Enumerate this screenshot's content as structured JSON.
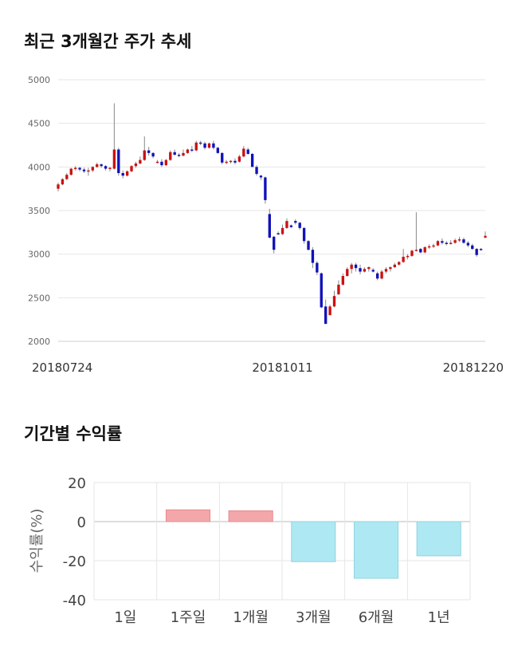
{
  "section1": {
    "title": "최근 3개월간 주가 추세"
  },
  "section2": {
    "title": "기간별 수익률"
  },
  "colors": {
    "up": "#cc1111",
    "down": "#1111bb",
    "positive_bar": "#f4a7ab",
    "negative_bar": "#aee8f2",
    "grid": "#e6e6e6"
  },
  "chart_data": [
    {
      "type": "candlestick",
      "title": "최근 3개월간 주가 추세",
      "ylim": [
        2000,
        5000
      ],
      "y_ticks": [
        5000,
        4500,
        4000,
        3500,
        3000,
        2500,
        2000
      ],
      "x_tick_labels": [
        {
          "index": 0,
          "label": "20180724"
        },
        {
          "index": 52,
          "label": "20181011"
        },
        {
          "index": 99,
          "label": "20181220"
        }
      ],
      "grid": true,
      "ohlc": [
        [
          3750,
          3820,
          3720,
          3800
        ],
        [
          3800,
          3870,
          3790,
          3860
        ],
        [
          3860,
          3930,
          3850,
          3910
        ],
        [
          3910,
          3990,
          3900,
          3980
        ],
        [
          3980,
          4010,
          3960,
          3990
        ],
        [
          3990,
          4000,
          3950,
          3970
        ],
        [
          3970,
          3990,
          3930,
          3950
        ],
        [
          3950,
          3990,
          3900,
          3960
        ],
        [
          3960,
          4010,
          3940,
          4000
        ],
        [
          4000,
          4050,
          3990,
          4030
        ],
        [
          4030,
          4040,
          3990,
          4010
        ],
        [
          4010,
          4020,
          3960,
          3980
        ],
        [
          3980,
          4000,
          3950,
          3990
        ],
        [
          3980,
          4730,
          3970,
          4200
        ],
        [
          4200,
          4220,
          3900,
          3930
        ],
        [
          3930,
          3960,
          3870,
          3900
        ],
        [
          3900,
          3960,
          3890,
          3950
        ],
        [
          3950,
          4020,
          3940,
          4010
        ],
        [
          4010,
          4060,
          3990,
          4040
        ],
        [
          4040,
          4120,
          4030,
          4080
        ],
        [
          4080,
          4350,
          4070,
          4190
        ],
        [
          4190,
          4230,
          4130,
          4160
        ],
        [
          4160,
          4170,
          4100,
          4120
        ],
        [
          4060,
          4080,
          4040,
          4060
        ],
        [
          4060,
          4090,
          4000,
          4020
        ],
        [
          4020,
          4090,
          4010,
          4080
        ],
        [
          4080,
          4190,
          4070,
          4170
        ],
        [
          4170,
          4200,
          4130,
          4140
        ],
        [
          4140,
          4160,
          4110,
          4130
        ],
        [
          4130,
          4200,
          4120,
          4160
        ],
        [
          4160,
          4210,
          4150,
          4200
        ],
        [
          4200,
          4240,
          4170,
          4190
        ],
        [
          4190,
          4300,
          4180,
          4280
        ],
        [
          4280,
          4300,
          4250,
          4270
        ],
        [
          4270,
          4290,
          4200,
          4220
        ],
        [
          4220,
          4280,
          4210,
          4270
        ],
        [
          4270,
          4300,
          4200,
          4220
        ],
        [
          4220,
          4230,
          4150,
          4160
        ],
        [
          4160,
          4170,
          4030,
          4050
        ],
        [
          4050,
          4080,
          4030,
          4060
        ],
        [
          4060,
          4080,
          4040,
          4070
        ],
        [
          4070,
          4100,
          4030,
          4050
        ],
        [
          4060,
          4140,
          4050,
          4120
        ],
        [
          4120,
          4240,
          4110,
          4210
        ],
        [
          4200,
          4220,
          4140,
          4150
        ],
        [
          4150,
          4160,
          4030,
          4000
        ],
        [
          4000,
          4020,
          3900,
          3920
        ],
        [
          3900,
          3910,
          3850,
          3880
        ],
        [
          3880,
          3890,
          3580,
          3620
        ],
        [
          3460,
          3520,
          3180,
          3190
        ],
        [
          3200,
          3210,
          3010,
          3050
        ],
        [
          3240,
          3260,
          3220,
          3230
        ],
        [
          3230,
          3340,
          3220,
          3300
        ],
        [
          3300,
          3410,
          3290,
          3380
        ],
        [
          3330,
          3340,
          3300,
          3310
        ],
        [
          3380,
          3400,
          3340,
          3360
        ],
        [
          3360,
          3370,
          3280,
          3300
        ],
        [
          3300,
          3310,
          3120,
          3150
        ],
        [
          3150,
          3160,
          3040,
          3050
        ],
        [
          3050,
          3080,
          2840,
          2900
        ],
        [
          2900,
          2920,
          2760,
          2790
        ],
        [
          2780,
          2790,
          2380,
          2390
        ],
        [
          2400,
          2480,
          2210,
          2200
        ],
        [
          2300,
          2420,
          2300,
          2400
        ],
        [
          2400,
          2580,
          2390,
          2520
        ],
        [
          2540,
          2700,
          2530,
          2650
        ],
        [
          2650,
          2780,
          2640,
          2750
        ],
        [
          2750,
          2850,
          2740,
          2830
        ],
        [
          2830,
          2900,
          2780,
          2880
        ],
        [
          2880,
          2900,
          2800,
          2840
        ],
        [
          2840,
          2880,
          2770,
          2800
        ],
        [
          2800,
          2850,
          2790,
          2830
        ],
        [
          2830,
          2860,
          2800,
          2850
        ],
        [
          2820,
          2840,
          2790,
          2800
        ],
        [
          2780,
          2800,
          2700,
          2720
        ],
        [
          2720,
          2820,
          2710,
          2800
        ],
        [
          2800,
          2850,
          2780,
          2830
        ],
        [
          2830,
          2860,
          2800,
          2850
        ],
        [
          2850,
          2900,
          2840,
          2880
        ],
        [
          2880,
          2920,
          2870,
          2910
        ],
        [
          2910,
          3060,
          2900,
          2970
        ],
        [
          2970,
          3000,
          2940,
          2980
        ],
        [
          2980,
          3050,
          2970,
          3040
        ],
        [
          3040,
          3480,
          3030,
          3050
        ],
        [
          3060,
          3070,
          3010,
          3020
        ],
        [
          3020,
          3090,
          3010,
          3080
        ],
        [
          3080,
          3110,
          3060,
          3090
        ],
        [
          3090,
          3120,
          3070,
          3100
        ],
        [
          3100,
          3160,
          3090,
          3150
        ],
        [
          3150,
          3180,
          3110,
          3130
        ],
        [
          3130,
          3150,
          3100,
          3120
        ],
        [
          3120,
          3160,
          3110,
          3130
        ],
        [
          3130,
          3180,
          3120,
          3160
        ],
        [
          3160,
          3200,
          3140,
          3170
        ],
        [
          3170,
          3190,
          3120,
          3130
        ],
        [
          3130,
          3150,
          3080,
          3100
        ],
        [
          3100,
          3120,
          3050,
          3060
        ],
        [
          3060,
          3070,
          2970,
          2990
        ],
        [
          3060,
          3070,
          3040,
          3050
        ],
        [
          3190,
          3260,
          3180,
          3210
        ]
      ]
    },
    {
      "type": "bar",
      "title": "기간별 수익률",
      "ylabel": "수익률(%)",
      "categories": [
        "1일",
        "1주일",
        "1개월",
        "3개월",
        "6개월",
        "1년"
      ],
      "values": [
        0,
        6.0,
        5.5,
        -20.5,
        -29.0,
        -17.5
      ],
      "ylim": [
        -40,
        20
      ],
      "y_ticks": [
        20,
        0,
        -20,
        -40
      ],
      "grid": true
    }
  ]
}
